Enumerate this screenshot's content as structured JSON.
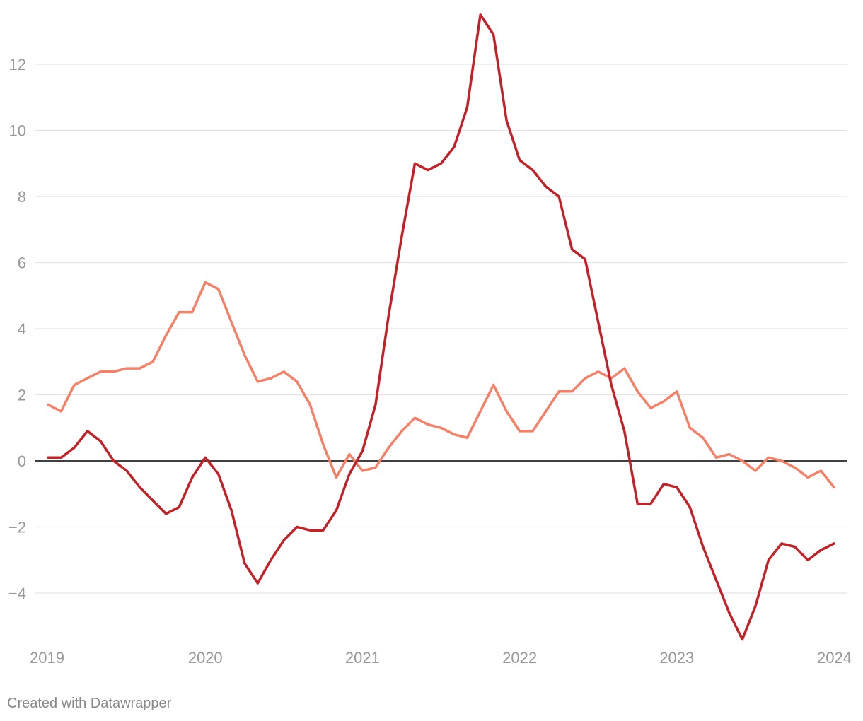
{
  "chart_data": {
    "type": "line",
    "title": "",
    "xlabel": "",
    "ylabel": "",
    "xlim": [
      2019,
      2024
    ],
    "ylim": [
      -5.6,
      13.6
    ],
    "grid": true,
    "legend": "none",
    "x_ticks": [
      "2019",
      "2020",
      "2021",
      "2022",
      "2023",
      "2024"
    ],
    "y_ticks": [
      {
        "value": 12,
        "label": "12"
      },
      {
        "value": 10,
        "label": "10"
      },
      {
        "value": 8,
        "label": "8"
      },
      {
        "value": 6,
        "label": "6"
      },
      {
        "value": 4,
        "label": "4"
      },
      {
        "value": 2,
        "label": "2"
      },
      {
        "value": 0,
        "label": "0"
      },
      {
        "value": -2,
        "label": "−2"
      },
      {
        "value": -4,
        "label": "−4"
      }
    ],
    "series": [
      {
        "color": "#f77f66",
        "values": [
          1.7,
          1.5,
          2.3,
          2.5,
          2.7,
          2.7,
          2.8,
          2.8,
          3.0,
          3.8,
          4.5,
          4.5,
          5.4,
          5.2,
          4.2,
          3.2,
          2.4,
          2.5,
          2.7,
          2.4,
          1.7,
          0.5,
          -0.5,
          0.2,
          -0.3,
          -0.2,
          0.4,
          0.9,
          1.3,
          1.1,
          1.0,
          0.8,
          0.7,
          1.5,
          2.3,
          1.5,
          0.9,
          0.9,
          1.5,
          2.1,
          2.1,
          2.5,
          2.7,
          2.5,
          2.8,
          2.1,
          1.6,
          1.8,
          2.1,
          1.0,
          0.7,
          0.1,
          0.2,
          0.0,
          -0.3,
          0.1,
          0.0,
          -0.2,
          -0.5,
          -0.3,
          -0.8
        ]
      },
      {
        "color": "#c62026",
        "values": [
          0.1,
          0.1,
          0.4,
          0.9,
          0.6,
          0.0,
          -0.3,
          -0.8,
          -1.2,
          -1.6,
          -1.4,
          -0.5,
          0.1,
          -0.4,
          -1.5,
          -3.1,
          -3.7,
          -3.0,
          -2.4,
          -2.0,
          -2.1,
          -2.1,
          -1.5,
          -0.4,
          0.3,
          1.7,
          4.4,
          6.8,
          9.0,
          8.8,
          9.0,
          9.5,
          10.7,
          13.5,
          12.9,
          10.3,
          9.1,
          8.8,
          8.3,
          8.0,
          6.4,
          6.1,
          4.2,
          2.3,
          0.9,
          -1.3,
          -1.3,
          -0.7,
          -0.8,
          -1.4,
          -2.6,
          -3.6,
          -4.6,
          -5.4,
          -4.4,
          -3.0,
          -2.5,
          -2.6,
          -3.0,
          -2.7,
          -2.5
        ]
      }
    ]
  },
  "footer": {
    "credit": "Created with Datawrapper"
  }
}
